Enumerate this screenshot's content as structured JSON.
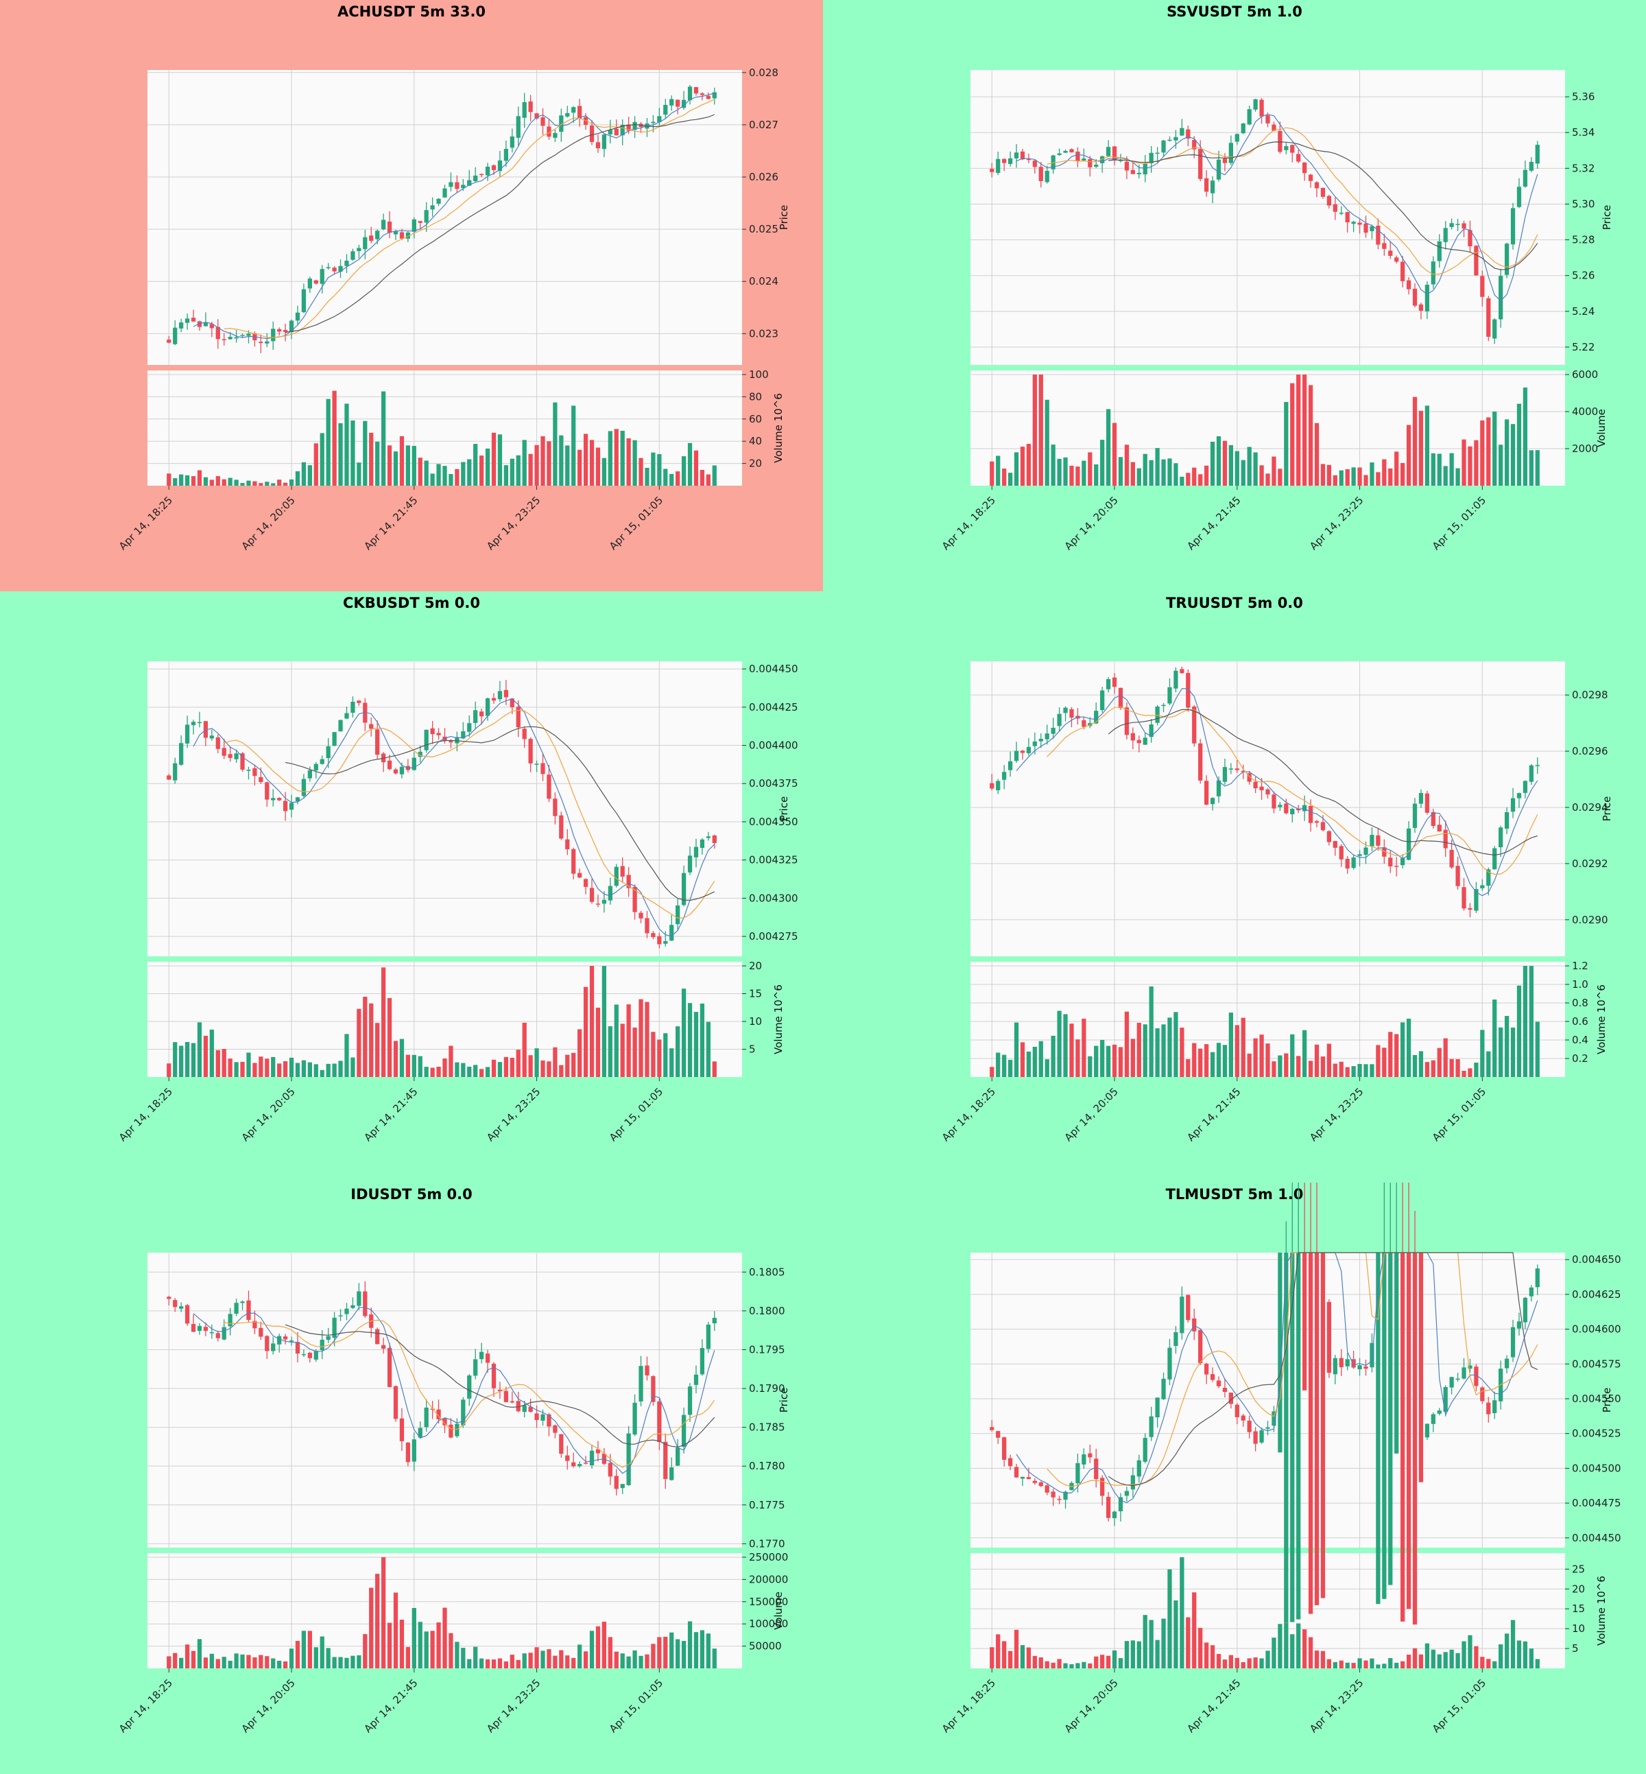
{
  "layout_colors": {
    "page_bg": "#93ffc5",
    "highlight_bg": "#faa69b",
    "plot_bg": "#fafafa",
    "grid": "#d0d0d0",
    "up": "#26a67c",
    "down": "#ef4a54",
    "ma_fast": "#4d7fc9",
    "ma_mid": "#f5a23a",
    "ma_slow": "#555555"
  },
  "shared_x_ticks": [
    "Apr 14, 18:25",
    "Apr 14, 20:05",
    "Apr 14, 21:45",
    "Apr 14, 23:25",
    "Apr 15, 01:05"
  ],
  "chart_data": [
    {
      "type": "candlestick",
      "title": "ACHUSDT 5m 33.0",
      "highlight": true,
      "price_label": "Price",
      "volume_label": "Volume  10^6",
      "price_ticks": [
        "0.028",
        "0.027",
        "0.026",
        "0.025",
        "0.024",
        "0.023"
      ],
      "price_range": [
        0.0224,
        0.02805
      ],
      "volume_ticks": [
        "100",
        "80",
        "60",
        "40",
        "20"
      ],
      "volume_range": [
        0,
        100
      ],
      "close_path": [
        0.0229,
        0.02335,
        0.02295,
        0.02305,
        0.0229,
        0.02305,
        0.02405,
        0.0242,
        0.0246,
        0.02515,
        0.02485,
        0.02545,
        0.0258,
        0.02595,
        0.0262,
        0.0274,
        0.0268,
        0.0274,
        0.0266,
        0.0269,
        0.027,
        0.0273,
        0.0276,
        0.0276
      ],
      "volume_path": [
        10,
        12,
        8,
        5,
        5,
        4,
        25,
        95,
        40,
        75,
        35,
        20,
        15,
        30,
        38,
        32,
        60,
        85,
        30,
        55,
        25,
        20,
        38,
        15
      ],
      "seed": 11
    },
    {
      "type": "candlestick",
      "title": "SSVUSDT 5m 1.0",
      "highlight": false,
      "price_label": "Price",
      "volume_label": "Volume",
      "price_ticks": [
        "5.36",
        "5.34",
        "5.32",
        "5.30",
        "5.28",
        "5.26",
        "5.24",
        "5.22"
      ],
      "price_range": [
        5.21,
        5.375
      ],
      "volume_ticks": [
        "6000",
        "4000",
        "2000"
      ],
      "volume_range": [
        0,
        6000
      ],
      "close_path": [
        5.32,
        5.33,
        5.315,
        5.335,
        5.32,
        5.33,
        5.315,
        5.33,
        5.345,
        5.31,
        5.33,
        5.36,
        5.335,
        5.32,
        5.3,
        5.29,
        5.285,
        5.27,
        5.24,
        5.285,
        5.29,
        5.225,
        5.3,
        5.335
      ],
      "volume_path": [
        1200,
        1500,
        6000,
        1200,
        1000,
        3500,
        900,
        1800,
        1000,
        800,
        4000,
        1800,
        1100,
        7200,
        1500,
        900,
        1000,
        1800,
        4300,
        1500,
        2000,
        3200,
        5400,
        2400
      ],
      "seed": 23
    },
    {
      "type": "candlestick",
      "title": "CKBUSDT 5m 0.0",
      "highlight": false,
      "price_label": "Price",
      "volume_label": "Volume  10^6",
      "price_ticks": [
        "0.004450",
        "0.004425",
        "0.004400",
        "0.004375",
        "0.004350",
        "0.004325",
        "0.004300",
        "0.004275"
      ],
      "price_range": [
        0.004262,
        0.004455
      ],
      "volume_ticks": [
        "20",
        "15",
        "10",
        "5"
      ],
      "volume_range": [
        0,
        20
      ],
      "close_path": [
        0.00438,
        0.00442,
        0.0044,
        0.00439,
        0.00437,
        0.00436,
        0.00438,
        0.00441,
        0.00443,
        0.00439,
        0.00438,
        0.00441,
        0.0044,
        0.00442,
        0.00444,
        0.0044,
        0.00437,
        0.00432,
        0.00429,
        0.00432,
        0.00428,
        0.00427,
        0.00433,
        0.00434
      ],
      "volume_path": [
        5,
        8,
        6,
        3,
        4,
        3,
        2,
        3,
        9,
        18,
        4,
        2,
        5,
        2,
        3,
        8,
        4,
        4,
        21,
        10,
        11,
        6,
        15,
        6
      ],
      "seed": 37
    },
    {
      "type": "candlestick",
      "title": "TRUUSDT 5m 0.0",
      "highlight": false,
      "price_label": "Price",
      "volume_label": "Volume  10^6",
      "price_ticks": [
        "0.0298",
        "0.0296",
        "0.0294",
        "0.0292",
        "0.0290"
      ],
      "price_range": [
        0.02887,
        0.02992
      ],
      "volume_ticks": [
        "1.2",
        "1.0",
        "0.8",
        "0.6",
        "0.4",
        "0.2"
      ],
      "volume_range": [
        0,
        1.2
      ],
      "close_path": [
        0.02948,
        0.02958,
        0.02965,
        0.02975,
        0.0297,
        0.02985,
        0.0296,
        0.02975,
        0.0299,
        0.0294,
        0.02955,
        0.0295,
        0.0294,
        0.0294,
        0.0293,
        0.0292,
        0.0293,
        0.02915,
        0.02945,
        0.0293,
        0.029,
        0.0292,
        0.02945,
        0.02956
      ],
      "volume_path": [
        0.1,
        0.5,
        0.3,
        0.6,
        0.5,
        0.4,
        0.8,
        0.9,
        0.4,
        0.3,
        0.6,
        0.5,
        0.3,
        0.4,
        0.3,
        0.2,
        0.1,
        0.8,
        0.3,
        0.4,
        0.1,
        0.6,
        1.15,
        0.95
      ],
      "seed": 41
    },
    {
      "type": "candlestick",
      "title": "IDUSDT 5m 0.0",
      "highlight": false,
      "price_label": "Price",
      "volume_label": "Volume",
      "price_ticks": [
        "0.1805",
        "0.1800",
        "0.1795",
        "0.1790",
        "0.1785",
        "0.1780",
        "0.1775",
        "0.1770"
      ],
      "price_range": [
        0.17695,
        0.18075
      ],
      "volume_ticks": [
        "250000",
        "200000",
        "150000",
        "100000",
        "50000"
      ],
      "volume_range": [
        0,
        250000
      ],
      "close_path": [
        0.1802,
        0.1798,
        0.1797,
        0.1802,
        0.1795,
        0.1797,
        0.1793,
        0.1799,
        0.1802,
        0.1795,
        0.178,
        0.1788,
        0.1784,
        0.1795,
        0.1789,
        0.1787,
        0.1786,
        0.1779,
        0.1782,
        0.1776,
        0.1795,
        0.1777,
        0.179,
        0.18
      ],
      "volume_path": [
        25000,
        60000,
        40000,
        30000,
        25000,
        30000,
        90000,
        30000,
        20000,
        240000,
        60000,
        200000,
        50000,
        40000,
        20000,
        30000,
        50000,
        30000,
        120000,
        40000,
        30000,
        80000,
        110000,
        40000
      ],
      "seed": 53
    },
    {
      "type": "candlestick",
      "title": "TLMUSDT 5m 1.0",
      "highlight": false,
      "price_label": "Price",
      "volume_label": "Volume  10^6",
      "price_ticks": [
        "0.004650",
        "0.004625",
        "0.004600",
        "0.004575",
        "0.004550",
        "0.004525",
        "0.004500",
        "0.004475",
        "0.004450"
      ],
      "price_range": [
        0.004443,
        0.004655
      ],
      "volume_ticks": [
        "25",
        "20",
        "15",
        "10",
        "5"
      ],
      "volume_range": [
        0,
        28
      ],
      "close_path": [
        0.00453,
        0.00449,
        0.00449,
        0.00448,
        0.00451,
        0.00446,
        0.0045,
        0.00455,
        0.00462,
        0.00457,
        0.00455,
        0.00452,
        0.00454,
        0.00556,
        0.00457,
        0.00458,
        0.00457,
        0.00553,
        0.00452,
        0.00455,
        0.00458,
        0.00454,
        0.0046,
        0.00464
      ],
      "volume_path": [
        11,
        8,
        3,
        2,
        2,
        3,
        7,
        15,
        27,
        6,
        3,
        2,
        8,
        10,
        3,
        3,
        2,
        2,
        8,
        3,
        8,
        2,
        10,
        3
      ],
      "seed": 67
    }
  ]
}
